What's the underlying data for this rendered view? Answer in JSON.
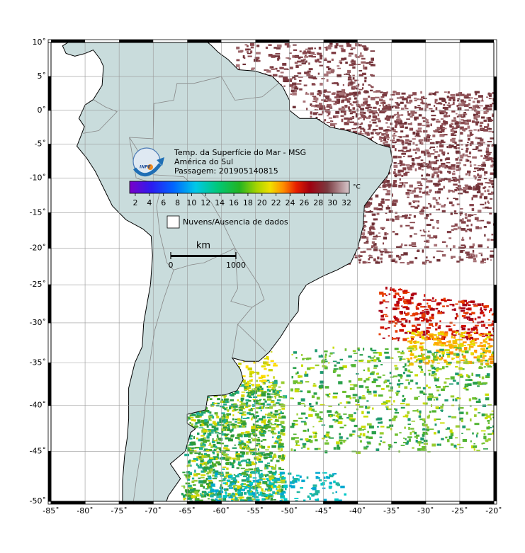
{
  "map": {
    "projection": "mercator",
    "xlim": [
      -85,
      -20
    ],
    "ylim": [
      -50,
      10
    ],
    "grid": true,
    "xticks": [
      {
        "value": -85,
        "label": "-85˚"
      },
      {
        "value": -80,
        "label": "-80˚"
      },
      {
        "value": -75,
        "label": "-75˚"
      },
      {
        "value": -70,
        "label": "-70˚"
      },
      {
        "value": -65,
        "label": "-65˚"
      },
      {
        "value": -60,
        "label": "-60˚"
      },
      {
        "value": -55,
        "label": "-55˚"
      },
      {
        "value": -50,
        "label": "-50˚"
      },
      {
        "value": -45,
        "label": "-45˚"
      },
      {
        "value": -40,
        "label": "-40˚"
      },
      {
        "value": -35,
        "label": "-35˚"
      },
      {
        "value": -30,
        "label": "-30˚"
      },
      {
        "value": -25,
        "label": "-25˚"
      },
      {
        "value": -20,
        "label": "-20˚"
      }
    ],
    "yticks": [
      {
        "value": 10,
        "label": "10˚"
      },
      {
        "value": 5,
        "label": "5˚"
      },
      {
        "value": 0,
        "label": "0˚"
      },
      {
        "value": -5,
        "label": "-5˚"
      },
      {
        "value": -10,
        "label": "-10˚"
      },
      {
        "value": -15,
        "label": "-15˚"
      },
      {
        "value": -20,
        "label": "-20˚"
      },
      {
        "value": -25,
        "label": "-25˚"
      },
      {
        "value": -30,
        "label": "-30˚"
      },
      {
        "value": -35,
        "label": "-35˚"
      },
      {
        "value": -40,
        "label": "-40˚"
      },
      {
        "value": -45,
        "label": "-45˚"
      },
      {
        "value": -50,
        "label": "-50˚"
      }
    ]
  },
  "legend": {
    "logo": "INPE",
    "title": [
      "Temp. da Superfície do Mar - MSG",
      "América do Sul",
      "Passagem: 201905140815"
    ],
    "colorbar": {
      "unit": "°C",
      "lim": [
        1.2,
        32.4
      ],
      "ticks": [
        2,
        4,
        6,
        8,
        10,
        12,
        14,
        16,
        18,
        20,
        22,
        24,
        26,
        28,
        30,
        32
      ]
    },
    "no_data": "Nuvens/Ausencia de dados",
    "scale": {
      "unit": "km",
      "ticks": [
        0,
        1000
      ]
    }
  }
}
